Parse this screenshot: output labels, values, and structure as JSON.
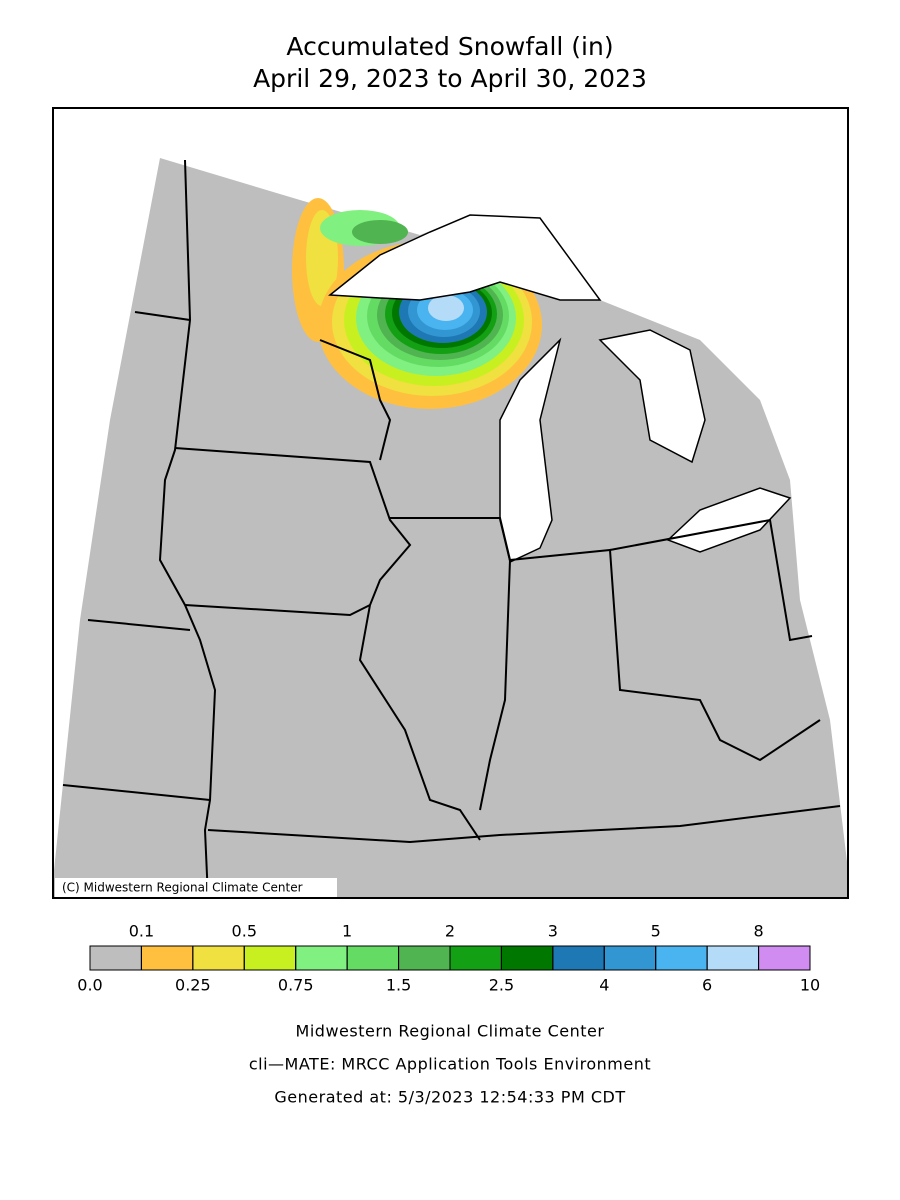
{
  "title_lines": [
    "Accumulated Snowfall (in)",
    "April 29, 2023 to April 30, 2023"
  ],
  "copyright": "(C) Midwestern Regional Climate Center",
  "legend": {
    "boundaries": [
      {
        "value": 0,
        "label": "0.0"
      },
      0.1,
      0.25,
      0.5,
      0.75,
      1,
      1.5,
      2,
      2.5,
      3,
      4,
      5,
      6,
      8,
      10
    ],
    "colors": [
      "#bebebe",
      "#ffc040",
      "#f0e040",
      "#c8f020",
      "#80f080",
      "#64dc64",
      "#50b450",
      "#14a014",
      "#007800",
      "#1e78b4",
      "#3296d2",
      "#4ab4f0",
      "#b4dcf8",
      "#d08cf0"
    ]
  },
  "footer_lines": [
    "Midwestern Regional Climate Center",
    "cli—MATE: MRCC Application Tools Environment",
    "Generated at: 5/3/2023 12:54:33 PM CDT"
  ]
}
